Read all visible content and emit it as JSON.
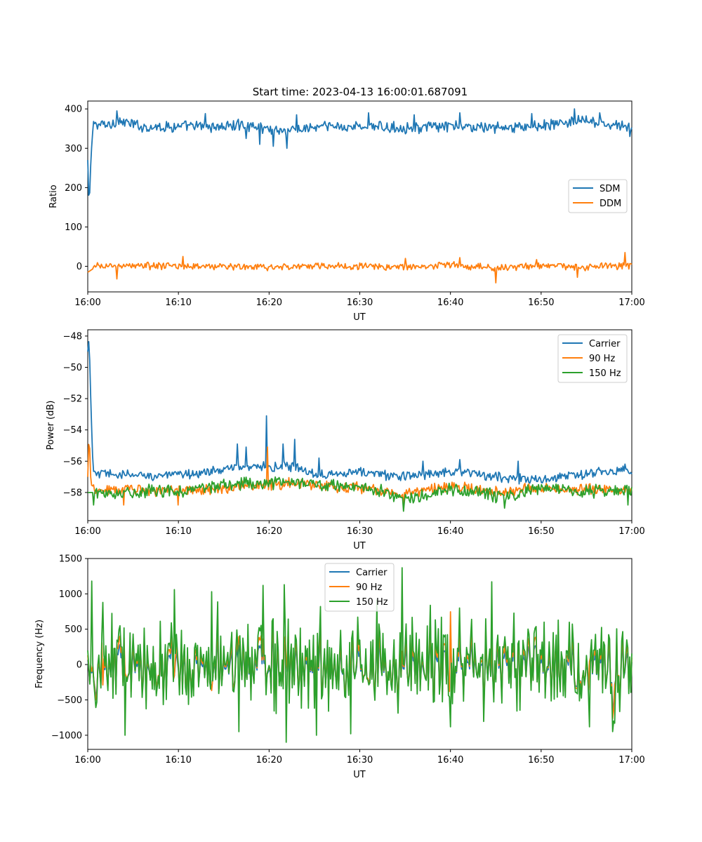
{
  "figure": {
    "title": "Start time: 2023-04-13 16:00:01.687091"
  },
  "colors": {
    "blue": "#1f77b4",
    "orange": "#ff7f0e",
    "green": "#2ca02c"
  },
  "chart_data": [
    {
      "type": "line",
      "title": "Start time: 2023-04-13 16:00:01.687091",
      "xlabel": "UT",
      "ylabel": "Ratio",
      "xlim": [
        0,
        60
      ],
      "ylim": [
        -65,
        420
      ],
      "xticks": [
        0,
        10,
        20,
        30,
        40,
        50,
        60
      ],
      "xticklabels": [
        "16:00",
        "16:10",
        "16:20",
        "16:30",
        "16:40",
        "16:50",
        "17:00"
      ],
      "yticks": [
        0,
        100,
        200,
        300,
        400
      ],
      "yticklabels": [
        "0",
        "100",
        "200",
        "300",
        "400"
      ],
      "legend": {
        "position": "center-right",
        "entries": [
          "SDM",
          "DDM"
        ]
      },
      "series": [
        {
          "name": "SDM",
          "color": "#1f77b4",
          "mode": "noise",
          "control": [
            [
              0,
              270
            ],
            [
              0.15,
              145
            ],
            [
              0.35,
              275
            ],
            [
              0.6,
              360
            ],
            [
              2.5,
              360
            ],
            [
              3.2,
              370
            ],
            [
              6,
              355
            ],
            [
              15,
              355
            ],
            [
              17,
              360
            ],
            [
              20,
              350
            ],
            [
              22,
              345
            ],
            [
              26,
              355
            ],
            [
              30,
              355
            ],
            [
              35,
              352
            ],
            [
              40,
              355
            ],
            [
              47,
              352
            ],
            [
              52,
              362
            ],
            [
              54,
              370
            ],
            [
              58,
              358
            ],
            [
              60,
              352
            ]
          ],
          "noise": 11,
          "spikes": [
            [
              3.2,
              395
            ],
            [
              13,
              388
            ],
            [
              17.5,
              325
            ],
            [
              19,
              310
            ],
            [
              20.5,
              305
            ],
            [
              22,
              300
            ],
            [
              23,
              385
            ],
            [
              31,
              390
            ],
            [
              36,
              385
            ],
            [
              41,
              390
            ],
            [
              49,
              388
            ],
            [
              53.7,
              400
            ],
            [
              56.5,
              390
            ],
            [
              59.8,
              330
            ]
          ]
        },
        {
          "name": "DDM",
          "color": "#ff7f0e",
          "mode": "noise",
          "control": [
            [
              0,
              -15
            ],
            [
              1,
              0
            ],
            [
              5,
              2
            ],
            [
              10,
              0
            ],
            [
              15,
              0
            ],
            [
              20,
              -3
            ],
            [
              25,
              2
            ],
            [
              30,
              0
            ],
            [
              35,
              -2
            ],
            [
              40,
              4
            ],
            [
              45,
              -5
            ],
            [
              50,
              2
            ],
            [
              55,
              -2
            ],
            [
              60,
              2
            ]
          ],
          "noise": 7,
          "spikes": [
            [
              3.2,
              -32
            ],
            [
              10.5,
              25
            ],
            [
              35,
              20
            ],
            [
              41,
              22
            ],
            [
              45,
              -42
            ],
            [
              49.5,
              17
            ],
            [
              54,
              -28
            ],
            [
              59.2,
              35
            ]
          ]
        }
      ]
    },
    {
      "type": "line",
      "xlabel": "UT",
      "ylabel": "Power (dB)",
      "xlim": [
        0,
        60
      ],
      "ylim": [
        -59.8,
        -47.6
      ],
      "xticks": [
        0,
        10,
        20,
        30,
        40,
        50,
        60
      ],
      "xticklabels": [
        "16:00",
        "16:10",
        "16:20",
        "16:30",
        "16:40",
        "16:50",
        "17:00"
      ],
      "yticks": [
        -58,
        -56,
        -54,
        -52,
        -50,
        -48
      ],
      "yticklabels": [
        "−58",
        "−56",
        "−54",
        "−52",
        "−50",
        "−48"
      ],
      "legend": {
        "position": "top-right",
        "entries": [
          "Carrier",
          "90 Hz",
          "150 Hz"
        ]
      },
      "series": [
        {
          "name": "Carrier",
          "color": "#1f77b4",
          "mode": "noise",
          "control": [
            [
              0,
              -49
            ],
            [
              0.15,
              -48.1
            ],
            [
              0.3,
              -51.5
            ],
            [
              0.6,
              -56.8
            ],
            [
              5,
              -56.9
            ],
            [
              10,
              -56.9
            ],
            [
              14,
              -56.6
            ],
            [
              18,
              -56.3
            ],
            [
              20,
              -56.4
            ],
            [
              23,
              -56.4
            ],
            [
              25,
              -56.8
            ],
            [
              30,
              -56.7
            ],
            [
              35,
              -57.0
            ],
            [
              40,
              -56.6
            ],
            [
              45,
              -57.0
            ],
            [
              50,
              -57.2
            ],
            [
              55,
              -56.8
            ],
            [
              60,
              -56.5
            ]
          ],
          "noise": 0.25,
          "spikes": [
            [
              16.5,
              -54.9
            ],
            [
              17.5,
              -55.1
            ],
            [
              19.7,
              -53.1
            ],
            [
              21.5,
              -54.9
            ],
            [
              22.8,
              -54.6
            ],
            [
              25.5,
              -55.8
            ],
            [
              37,
              -56.0
            ],
            [
              41,
              -55.9
            ],
            [
              47.5,
              -56.0
            ]
          ]
        },
        {
          "name": "90 Hz",
          "color": "#ff7f0e",
          "mode": "noise",
          "control": [
            [
              0,
              -57
            ],
            [
              0.15,
              -54.1
            ],
            [
              0.35,
              -57.5
            ],
            [
              1,
              -57.8
            ],
            [
              10,
              -57.9
            ],
            [
              18,
              -57.6
            ],
            [
              22,
              -57.4
            ],
            [
              30,
              -57.7
            ],
            [
              35,
              -58.1
            ],
            [
              40,
              -57.6
            ],
            [
              45,
              -58.0
            ],
            [
              50,
              -57.7
            ],
            [
              55,
              -57.8
            ],
            [
              60,
              -57.9
            ]
          ],
          "noise": 0.28,
          "spikes": [
            [
              4,
              -58.8
            ],
            [
              10,
              -58.8
            ],
            [
              19.8,
              -55.1
            ],
            [
              34.8,
              -58.9
            ]
          ]
        },
        {
          "name": "150 Hz",
          "color": "#2ca02c",
          "mode": "noise",
          "control": [
            [
              0,
              -58.0
            ],
            [
              1,
              -58.0
            ],
            [
              10,
              -57.9
            ],
            [
              18,
              -57.4
            ],
            [
              22,
              -57.4
            ],
            [
              30,
              -57.6
            ],
            [
              34,
              -58.2
            ],
            [
              36,
              -58.3
            ],
            [
              40,
              -57.8
            ],
            [
              46,
              -58.3
            ],
            [
              50,
              -57.8
            ],
            [
              55,
              -58.0
            ],
            [
              60,
              -57.8
            ]
          ],
          "noise": 0.32,
          "spikes": [
            [
              0.6,
              -58.8
            ],
            [
              34.8,
              -59.2
            ],
            [
              46,
              -59.0
            ],
            [
              59.6,
              -58.8
            ]
          ]
        }
      ]
    },
    {
      "type": "line",
      "xlabel": "UT",
      "ylabel": "Frequency (Hz)",
      "xlim": [
        0,
        60
      ],
      "ylim": [
        -1200,
        1500
      ],
      "xticks": [
        0,
        10,
        20,
        30,
        40,
        50,
        60
      ],
      "xticklabels": [
        "16:00",
        "16:10",
        "16:20",
        "16:30",
        "16:40",
        "16:50",
        "17:00"
      ],
      "yticks": [
        -1000,
        -500,
        0,
        500,
        1000,
        1500
      ],
      "yticklabels": [
        "−1000",
        "−500",
        "0",
        "500",
        "1000",
        "1500"
      ],
      "legend": {
        "position": "upper center",
        "entries": [
          "Carrier",
          "90 Hz",
          "150 Hz"
        ]
      },
      "series": [
        {
          "name": "Carrier",
          "color": "#1f77b4",
          "mode": "freq",
          "scale": 0.62,
          "offset": -60
        },
        {
          "name": "90 Hz",
          "color": "#ff7f0e",
          "mode": "freq",
          "scale": 0.78,
          "offset": -25
        },
        {
          "name": "150 Hz",
          "color": "#2ca02c",
          "mode": "freq",
          "scale": 1.0,
          "offset": 0,
          "spikes": [
            [
              0.5,
              1180
            ],
            [
              1.7,
              880
            ],
            [
              9.6,
              1060
            ],
            [
              13.7,
              1030
            ],
            [
              19.3,
              1120
            ],
            [
              21.7,
              1130
            ],
            [
              34.7,
              1370
            ],
            [
              44.6,
              1170
            ],
            [
              4.1,
              -1000
            ],
            [
              16.7,
              -950
            ],
            [
              21.9,
              -1100
            ],
            [
              25.2,
              -1000
            ],
            [
              29.0,
              -980
            ],
            [
              40.0,
              -880
            ],
            [
              55.3,
              -880
            ],
            [
              58.1,
              -830
            ]
          ]
        }
      ]
    }
  ]
}
